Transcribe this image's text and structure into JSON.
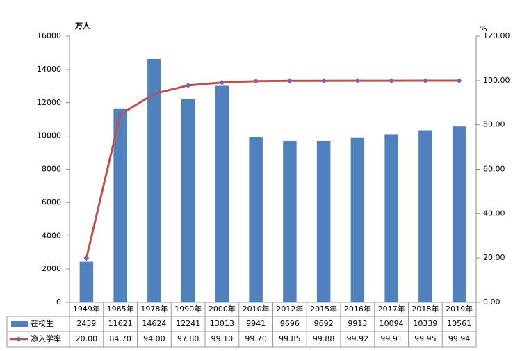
{
  "chart_data": {
    "type": "bar-line",
    "y_label": "万人",
    "y2_label": "%",
    "categories": [
      "1949年",
      "1965年",
      "1978年",
      "1990年",
      "2000年",
      "2010年",
      "2012年",
      "2015年",
      "2016年",
      "2017年",
      "2018年",
      "2019年"
    ],
    "series": [
      {
        "name": "在校生",
        "type": "bar",
        "color": "#4f81bd",
        "values": [
          2439,
          11621,
          14624,
          12241,
          13013,
          9941,
          9696,
          9692,
          9913,
          10094,
          10339,
          10561
        ]
      },
      {
        "name": "净入学率",
        "type": "line",
        "axis": "y2",
        "color": "#c0504d",
        "marker_color": "#8064a2",
        "values": [
          20,
          84.7,
          94,
          97.8,
          99.1,
          99.7,
          99.85,
          99.88,
          99.92,
          99.91,
          99.95,
          99.94
        ],
        "value_labels": [
          "20.00",
          "84.70",
          "94.00",
          "97.80",
          "99.10",
          "99.70",
          "99.85",
          "99.88",
          "99.92",
          "99.91",
          "99.95",
          "99.94"
        ]
      }
    ],
    "ylim": [
      0,
      16000
    ],
    "yticks": [
      0,
      2000,
      4000,
      6000,
      8000,
      10000,
      12000,
      14000,
      16000
    ],
    "y2lim": [
      0,
      120
    ],
    "y2ticks": [
      {
        "value": 0,
        "label": "0.00"
      },
      {
        "value": 20,
        "label": "20.00"
      },
      {
        "value": 40,
        "label": "40.00"
      },
      {
        "value": 60,
        "label": "60.00"
      },
      {
        "value": 80,
        "label": "80.00"
      },
      {
        "value": 100,
        "label": "100.00"
      },
      {
        "value": 120,
        "label": "120.00"
      }
    ]
  }
}
